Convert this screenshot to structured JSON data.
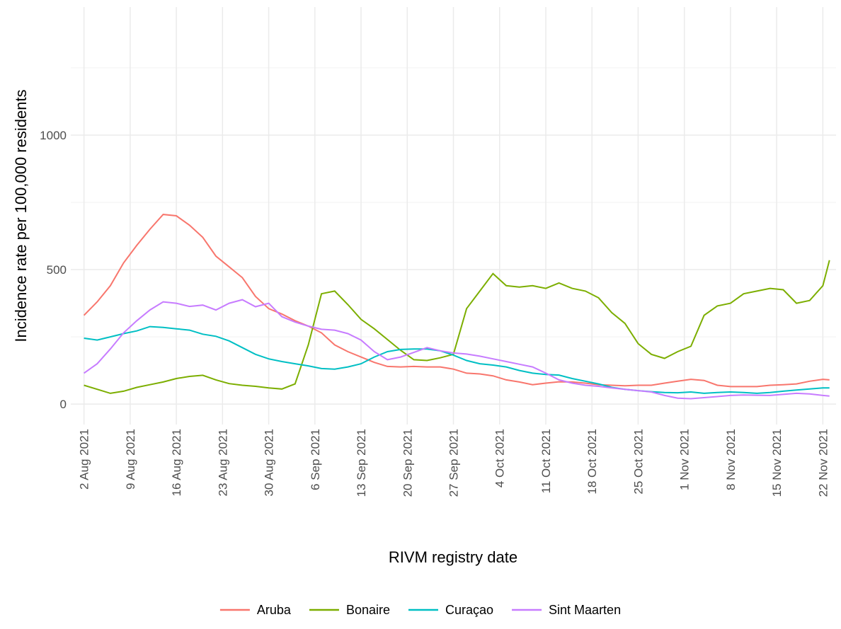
{
  "chart_data": {
    "type": "line",
    "xlabel": "RIVM registry date",
    "ylabel": "Incidence rate per 100,000 residents",
    "x": [
      "2021-08-02",
      "2021-08-04",
      "2021-08-06",
      "2021-08-08",
      "2021-08-10",
      "2021-08-12",
      "2021-08-14",
      "2021-08-16",
      "2021-08-18",
      "2021-08-20",
      "2021-08-22",
      "2021-08-24",
      "2021-08-26",
      "2021-08-28",
      "2021-08-30",
      "2021-09-01",
      "2021-09-03",
      "2021-09-05",
      "2021-09-07",
      "2021-09-09",
      "2021-09-11",
      "2021-09-13",
      "2021-09-15",
      "2021-09-17",
      "2021-09-19",
      "2021-09-21",
      "2021-09-23",
      "2021-09-25",
      "2021-09-27",
      "2021-09-29",
      "2021-10-01",
      "2021-10-03",
      "2021-10-05",
      "2021-10-07",
      "2021-10-09",
      "2021-10-11",
      "2021-10-13",
      "2021-10-15",
      "2021-10-17",
      "2021-10-19",
      "2021-10-21",
      "2021-10-23",
      "2021-10-25",
      "2021-10-27",
      "2021-10-29",
      "2021-10-31",
      "2021-11-02",
      "2021-11-04",
      "2021-11-06",
      "2021-11-08",
      "2021-11-10",
      "2021-11-12",
      "2021-11-14",
      "2021-11-16",
      "2021-11-18",
      "2021-11-20",
      "2021-11-22",
      "2021-11-23"
    ],
    "series": [
      {
        "name": "Aruba",
        "color": "#F8766D",
        "values": [
          330,
          380,
          440,
          525,
          590,
          650,
          705,
          700,
          665,
          620,
          550,
          510,
          470,
          400,
          355,
          335,
          310,
          290,
          265,
          220,
          195,
          175,
          155,
          140,
          138,
          140,
          138,
          138,
          130,
          115,
          112,
          105,
          90,
          82,
          72,
          78,
          83,
          82,
          78,
          72,
          70,
          68,
          70,
          70,
          78,
          85,
          92,
          88,
          70,
          65,
          65,
          65,
          70,
          72,
          75,
          85,
          92,
          90
        ]
      },
      {
        "name": "Bonaire",
        "color": "#7CAE00",
        "values": [
          70,
          55,
          40,
          48,
          62,
          72,
          82,
          95,
          103,
          107,
          90,
          76,
          70,
          66,
          60,
          56,
          75,
          220,
          410,
          420,
          370,
          315,
          280,
          240,
          200,
          165,
          162,
          172,
          185,
          355,
          420,
          485,
          440,
          435,
          440,
          430,
          450,
          430,
          420,
          395,
          340,
          300,
          225,
          185,
          170,
          195,
          215,
          330,
          365,
          375,
          410,
          420,
          430,
          425,
          375,
          385,
          440,
          535
        ]
      },
      {
        "name": "Curaçao",
        "color": "#00BFC4",
        "values": [
          245,
          238,
          250,
          262,
          272,
          288,
          285,
          280,
          275,
          260,
          252,
          235,
          210,
          185,
          168,
          158,
          150,
          142,
          132,
          130,
          138,
          150,
          175,
          195,
          203,
          205,
          205,
          198,
          182,
          162,
          150,
          145,
          138,
          125,
          115,
          110,
          108,
          95,
          85,
          75,
          62,
          55,
          50,
          46,
          43,
          42,
          45,
          40,
          43,
          45,
          43,
          40,
          43,
          48,
          52,
          56,
          60,
          60
        ]
      },
      {
        "name": "Sint Maarten",
        "color": "#C77CFF",
        "values": [
          115,
          150,
          205,
          265,
          310,
          350,
          380,
          375,
          363,
          368,
          350,
          375,
          388,
          362,
          375,
          325,
          305,
          290,
          278,
          275,
          262,
          238,
          195,
          165,
          175,
          192,
          210,
          198,
          190,
          186,
          178,
          168,
          158,
          148,
          138,
          115,
          90,
          78,
          70,
          66,
          60,
          55,
          50,
          45,
          32,
          22,
          20,
          24,
          28,
          32,
          34,
          33,
          32,
          36,
          40,
          38,
          32,
          30
        ]
      }
    ],
    "xlim": [
      "2021-07-31",
      "2021-11-24"
    ],
    "xticks": [
      {
        "value": "2021-08-02",
        "label": "2 Aug 2021"
      },
      {
        "value": "2021-08-09",
        "label": "9 Aug 2021"
      },
      {
        "value": "2021-08-16",
        "label": "16 Aug 2021"
      },
      {
        "value": "2021-08-23",
        "label": "23 Aug 2021"
      },
      {
        "value": "2021-08-30",
        "label": "30 Aug 2021"
      },
      {
        "value": "2021-09-06",
        "label": "6 Sep 2021"
      },
      {
        "value": "2021-09-13",
        "label": "13 Sep 2021"
      },
      {
        "value": "2021-09-20",
        "label": "20 Sep 2021"
      },
      {
        "value": "2021-09-27",
        "label": "27 Sep 2021"
      },
      {
        "value": "2021-10-04",
        "label": "4 Oct 2021"
      },
      {
        "value": "2021-10-11",
        "label": "11 Oct 2021"
      },
      {
        "value": "2021-10-18",
        "label": "18 Oct 2021"
      },
      {
        "value": "2021-10-25",
        "label": "25 Oct 2021"
      },
      {
        "value": "2021-11-01",
        "label": "1 Nov 2021"
      },
      {
        "value": "2021-11-08",
        "label": "8 Nov 2021"
      },
      {
        "value": "2021-11-15",
        "label": "15 Nov 2021"
      },
      {
        "value": "2021-11-22",
        "label": "22 Nov 2021"
      }
    ],
    "ylim": [
      -76,
      1476
    ],
    "yticks": [
      0,
      500,
      1000
    ],
    "yminorticks": [
      250,
      750,
      1250
    ],
    "grid": true,
    "legend": "bottom"
  }
}
